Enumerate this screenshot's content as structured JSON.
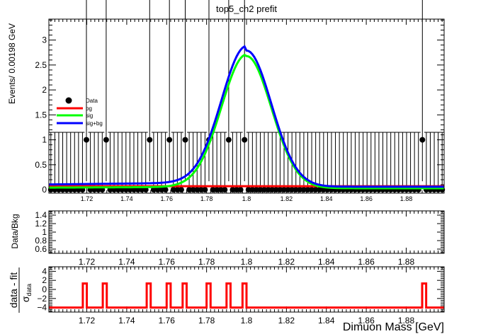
{
  "chart_data": [
    {
      "type": "scatter",
      "title": "top5_ch2   prefit",
      "ylabel": "Events/ 0.00198 GeV",
      "xlim": [
        1.701,
        1.899
      ],
      "ylim": [
        -0.07,
        3.42
      ],
      "xticks": [
        1.72,
        1.74,
        1.76,
        1.78,
        1.8,
        1.82,
        1.84,
        1.86,
        1.88
      ],
      "xtick_labels": [
        "1.72",
        "1.74",
        "1.76",
        "1.78",
        "1.8",
        "1.82",
        "1.84",
        "1.86",
        "1.88"
      ],
      "yticks": [
        0,
        0.5,
        1,
        1.5,
        2,
        2.5,
        3
      ],
      "ytick_labels": [
        "0",
        "0.5",
        "1",
        "1.5",
        "2",
        "2.5",
        "3"
      ],
      "bin_width": 0.00198,
      "data_ones_x": [
        1.719,
        1.729,
        1.751,
        1.761,
        1.769,
        1.781,
        1.791,
        1.799,
        1.889
      ],
      "error_up_zero": 1.15,
      "error_up_one": 3.3,
      "error_down_one": 0.83,
      "legend": {
        "position": "top-left",
        "entries": [
          {
            "label": "Data",
            "color": "#000000",
            "marker": "dot"
          },
          {
            "label": "bg",
            "color": "#ff0000",
            "marker": "line"
          },
          {
            "label": "sig",
            "color": "#00ff00",
            "marker": "line"
          },
          {
            "label": "sig+bg",
            "color": "#0000ff",
            "marker": "line"
          }
        ]
      },
      "series": [
        {
          "name": "bg",
          "color": "#ff0000",
          "kind": "flat",
          "value": 0.07
        },
        {
          "name": "sig",
          "color": "#00ff00",
          "kind": "peak",
          "peak": 2.65,
          "mean": 1.8,
          "sigma": 0.0125,
          "floor": 0.03,
          "lowtail": 0.06
        },
        {
          "name": "sig+bg",
          "color": "#0000ff",
          "kind": "peak",
          "peak": 2.73,
          "mean": 1.8,
          "sigma": 0.0125,
          "floor": 0.06,
          "lowtail": 0.15
        }
      ]
    },
    {
      "type": "line",
      "ylabel": "Data/Bkg",
      "xlim": [
        1.701,
        1.899
      ],
      "ylim": [
        0.5,
        1.5
      ],
      "xticks": [
        1.72,
        1.74,
        1.76,
        1.78,
        1.8,
        1.82,
        1.84,
        1.86,
        1.88
      ],
      "xtick_labels": [
        "1.72",
        "1.74",
        "1.76",
        "1.78",
        "1.8",
        "1.82",
        "1.84",
        "1.86",
        "1.88"
      ],
      "yticks": [
        0.6,
        0.8,
        1,
        1.2,
        1.4
      ],
      "ytick_labels": [
        "0.6",
        "0.8",
        "1",
        "1.2",
        "1.4"
      ]
    },
    {
      "type": "line",
      "ylabel_numerator": "data - fit",
      "ylabel_denominator": "σ",
      "ylabel_subscript": "data",
      "xlabel": "Dimuon Mass [GeV]",
      "xlim": [
        1.701,
        1.899
      ],
      "ylim": [
        -5,
        5
      ],
      "xticks": [
        1.72,
        1.74,
        1.76,
        1.78,
        1.8,
        1.82,
        1.84,
        1.86,
        1.88
      ],
      "xtick_labels": [
        "1.72",
        "1.74",
        "1.76",
        "1.78",
        "1.8",
        "1.82",
        "1.84",
        "1.86",
        "1.88"
      ],
      "yticks": [
        -4,
        -2,
        0,
        2,
        4
      ],
      "ytick_labels": [
        "−4",
        "−2",
        "0",
        "2",
        "4"
      ],
      "series": [
        {
          "name": "pulls",
          "color": "#ff0000",
          "baseline": -4,
          "pulses_x": [
            1.719,
            1.729,
            1.751,
            1.761,
            1.769,
            1.781,
            1.791,
            1.799,
            1.889
          ],
          "pulse_value": 1.3,
          "pulse_width": 0.002
        }
      ]
    }
  ]
}
